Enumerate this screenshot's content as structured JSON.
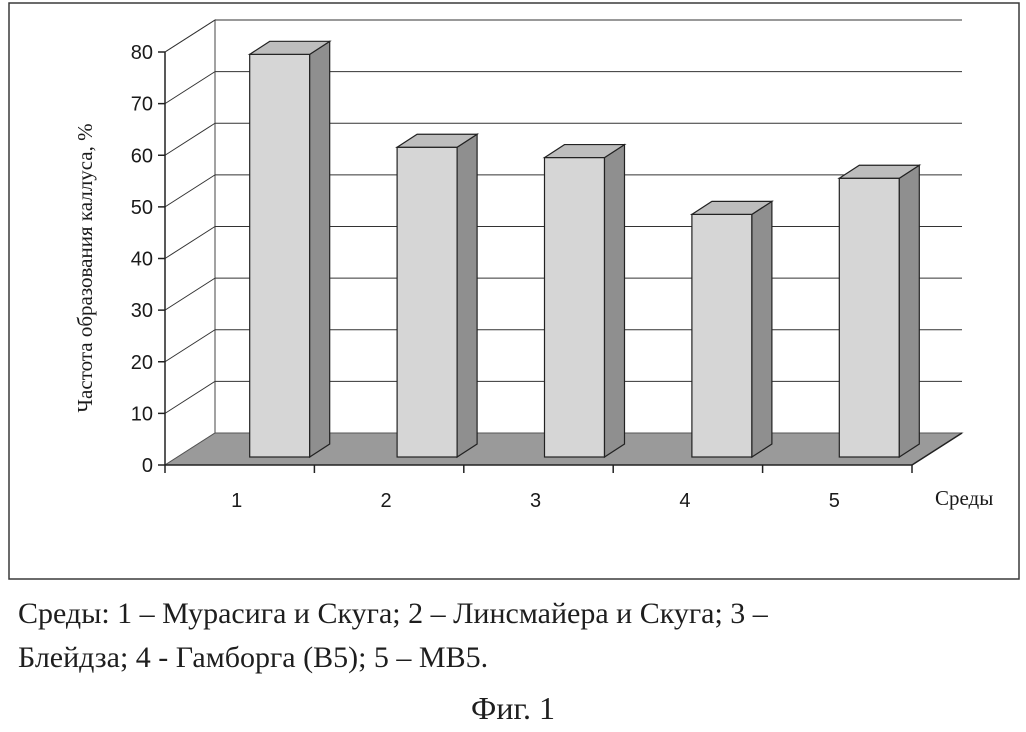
{
  "chart_data": {
    "type": "bar",
    "title": "",
    "ylabel": "Частота образования каллуса, %",
    "xlabel": "Среды",
    "categories": [
      "1",
      "2",
      "3",
      "4",
      "5"
    ],
    "values": [
      78,
      60,
      58,
      47,
      54
    ],
    "ylim": [
      0,
      80
    ],
    "yticks": [
      0,
      10,
      20,
      30,
      40,
      50,
      60,
      70,
      80
    ],
    "grid": true,
    "style": "3d-bar",
    "colors": {
      "bar_front": "#d6d6d6",
      "bar_side": "#8f8f8f",
      "bar_top": "#bdbdbd",
      "floor": "#9a9a9a",
      "wall": "#ffffff",
      "grid": "#333333"
    }
  },
  "caption": {
    "line1": "Среды: 1 – Мурасига и Скуга; 2 – Линсмайера и Скуга; 3 –",
    "line2": "Блейдза;   4 - Гамборга (В5); 5 – МВ5."
  },
  "figure_label": "Фиг. 1"
}
